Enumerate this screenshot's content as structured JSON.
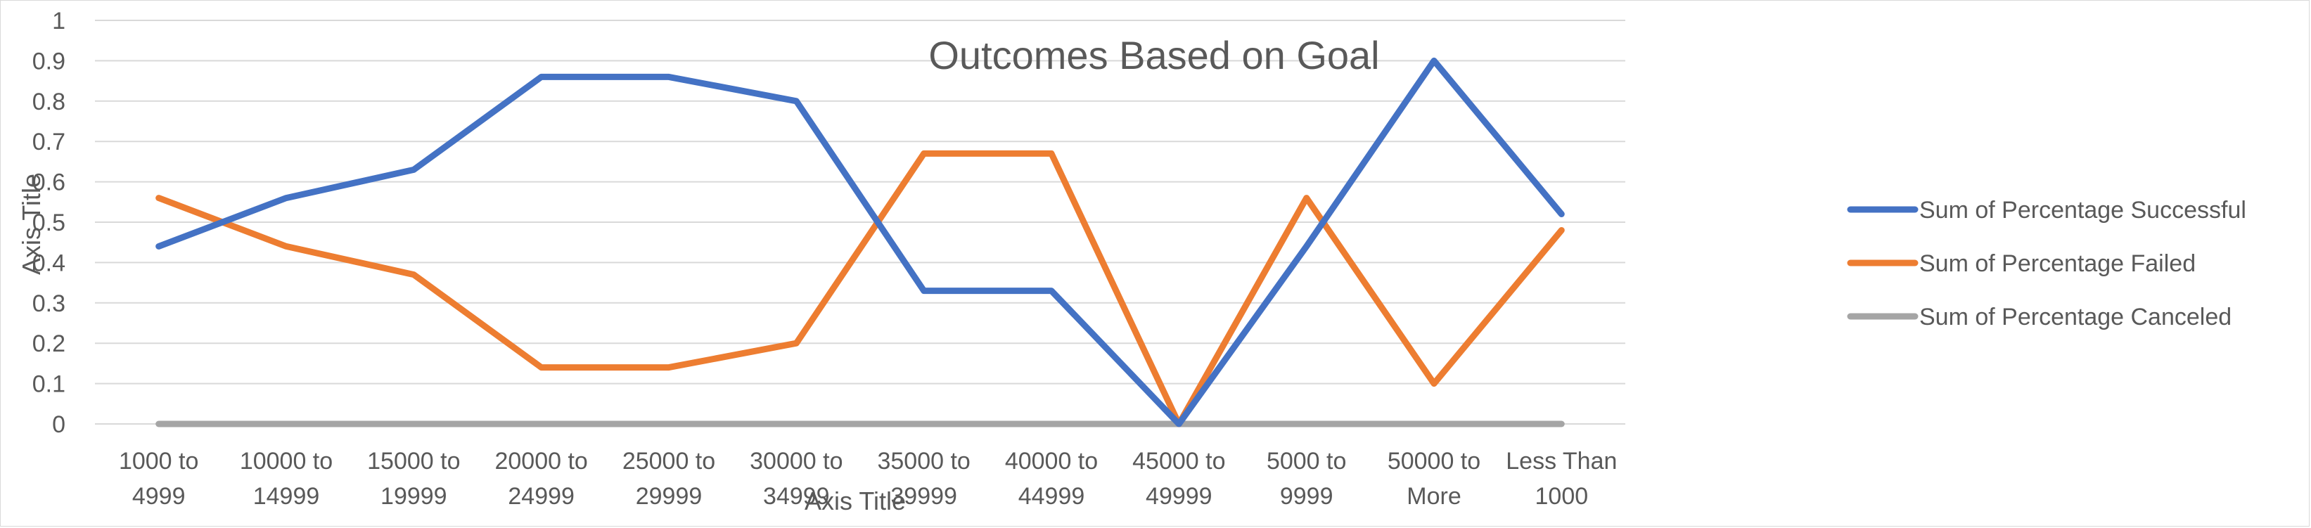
{
  "chart_data": {
    "type": "line",
    "title": "Outcomes Based on Goal",
    "xlabel": "Axis Title",
    "ylabel": "Axis Title",
    "ylim": [
      0,
      1
    ],
    "yticks": [
      "0",
      "0.1",
      "0.2",
      "0.3",
      "0.4",
      "0.5",
      "0.6",
      "0.7",
      "0.8",
      "0.9",
      "1"
    ],
    "grid": true,
    "legend_position": "right",
    "categories": [
      [
        "1000 to",
        "4999"
      ],
      [
        "10000 to",
        "14999"
      ],
      [
        "15000 to",
        "19999"
      ],
      [
        "20000 to",
        "24999"
      ],
      [
        "25000 to",
        "29999"
      ],
      [
        "30000 to",
        "34999"
      ],
      [
        "35000 to",
        "39999"
      ],
      [
        "40000 to",
        "44999"
      ],
      [
        "45000 to",
        "49999"
      ],
      [
        "5000 to",
        "9999"
      ],
      [
        "50000 to",
        "More"
      ],
      [
        "Less Than",
        "1000"
      ]
    ],
    "series": [
      {
        "name": "Sum of Percentage Successful",
        "color": "#4472c4",
        "values": [
          0.44,
          0.56,
          0.63,
          0.86,
          0.86,
          0.8,
          0.33,
          0.33,
          0.0,
          0.44,
          0.9,
          0.52
        ]
      },
      {
        "name": "Sum of Percentage Failed",
        "color": "#ed7d31",
        "values": [
          0.56,
          0.44,
          0.37,
          0.14,
          0.14,
          0.2,
          0.67,
          0.67,
          0.0,
          0.56,
          0.1,
          0.48
        ]
      },
      {
        "name": "Sum of Percentage Canceled",
        "color": "#a5a5a5",
        "values": [
          0,
          0,
          0,
          0,
          0,
          0,
          0,
          0,
          0,
          0,
          0,
          0
        ]
      }
    ]
  }
}
